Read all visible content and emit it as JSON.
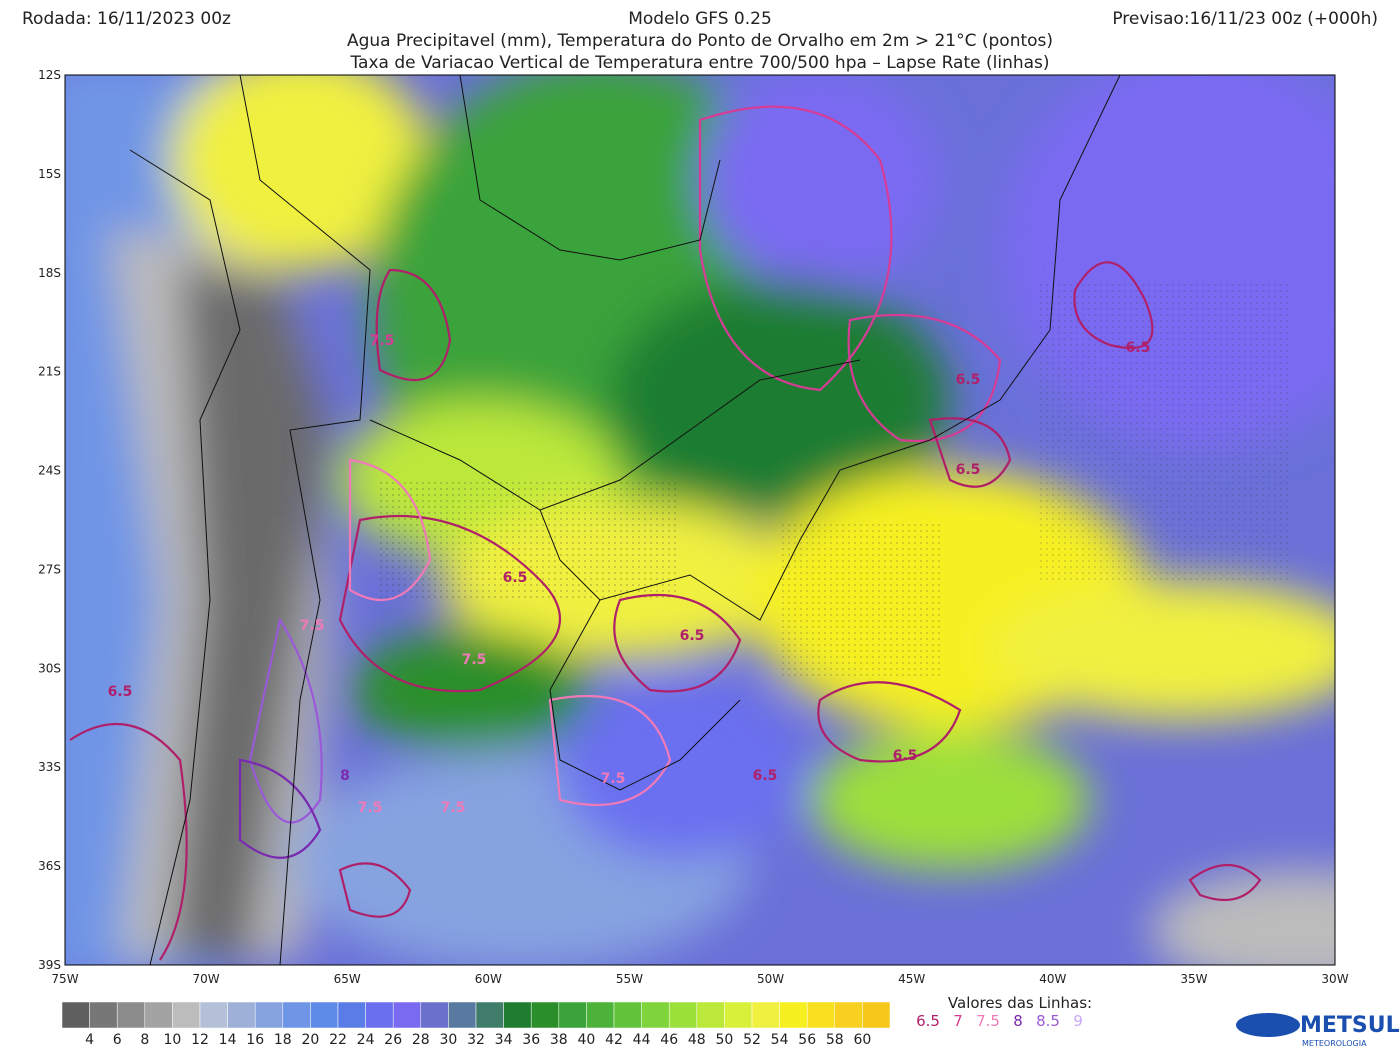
{
  "header": {
    "left": "Rodada: 16/11/2023 00z",
    "center": "Modelo GFS 0.25",
    "right": "Previsao:16/11/23 00z (+000h)",
    "subtitle1": "Agua Precipitavel (mm), Temperatura do Ponto de Orvalho em 2m > 21°C (pontos)",
    "subtitle2": "Taxa de Variacao Vertical de Temperatura entre 700/500 hpa – Lapse Rate (linhas)"
  },
  "axes": {
    "lat_labels": [
      "12S",
      "15S",
      "18S",
      "21S",
      "24S",
      "27S",
      "30S",
      "33S",
      "36S",
      "39S"
    ],
    "lon_labels": [
      "75W",
      "70W",
      "65W",
      "60W",
      "55W",
      "50W",
      "45W",
      "40W",
      "35W",
      "30W"
    ]
  },
  "colorbar": {
    "values": [
      4,
      6,
      8,
      10,
      12,
      14,
      16,
      18,
      20,
      22,
      24,
      26,
      28,
      30,
      32,
      34,
      36,
      38,
      40,
      42,
      44,
      46,
      48,
      50,
      52,
      54,
      56,
      58,
      60
    ],
    "colors": [
      "#5f5f5f",
      "#777777",
      "#8c8c8c",
      "#a3a3a3",
      "#bcbcbc",
      "#b4c0d8",
      "#9fb0d8",
      "#86a3e0",
      "#6f95e6",
      "#5f8be8",
      "#5a7ce6",
      "#6a6ff0",
      "#7a6af2",
      "#6b70cc",
      "#587aa0",
      "#3f7d6a",
      "#1f7d30",
      "#2a8f2a",
      "#3aa33a",
      "#4cb23a",
      "#62c23a",
      "#7ed43a",
      "#9ce03a",
      "#bce83a",
      "#d8f03a",
      "#f0f040",
      "#f6f020",
      "#f8e020",
      "#f8d020",
      "#f6c81a"
    ]
  },
  "line_legend": {
    "title": "Valores das Linhas:",
    "values": [
      6.5,
      7,
      7.5,
      8,
      8.5,
      9
    ],
    "colors": [
      "#b0206a",
      "#d63c96",
      "#f07ab8",
      "#7a2ab0",
      "#9a5ad8",
      "#c8a8f0"
    ]
  },
  "contour_labels": [
    "7.5",
    "6.5",
    "6.5",
    "6.5",
    "6.5",
    "6.5",
    "7.5",
    "7.5",
    "6.5",
    "6.5",
    "6.5",
    "7.5",
    "7.5",
    "7.5",
    "8"
  ],
  "logo": {
    "name": "METSUL",
    "subtitle": "METEOROLOGIA"
  }
}
